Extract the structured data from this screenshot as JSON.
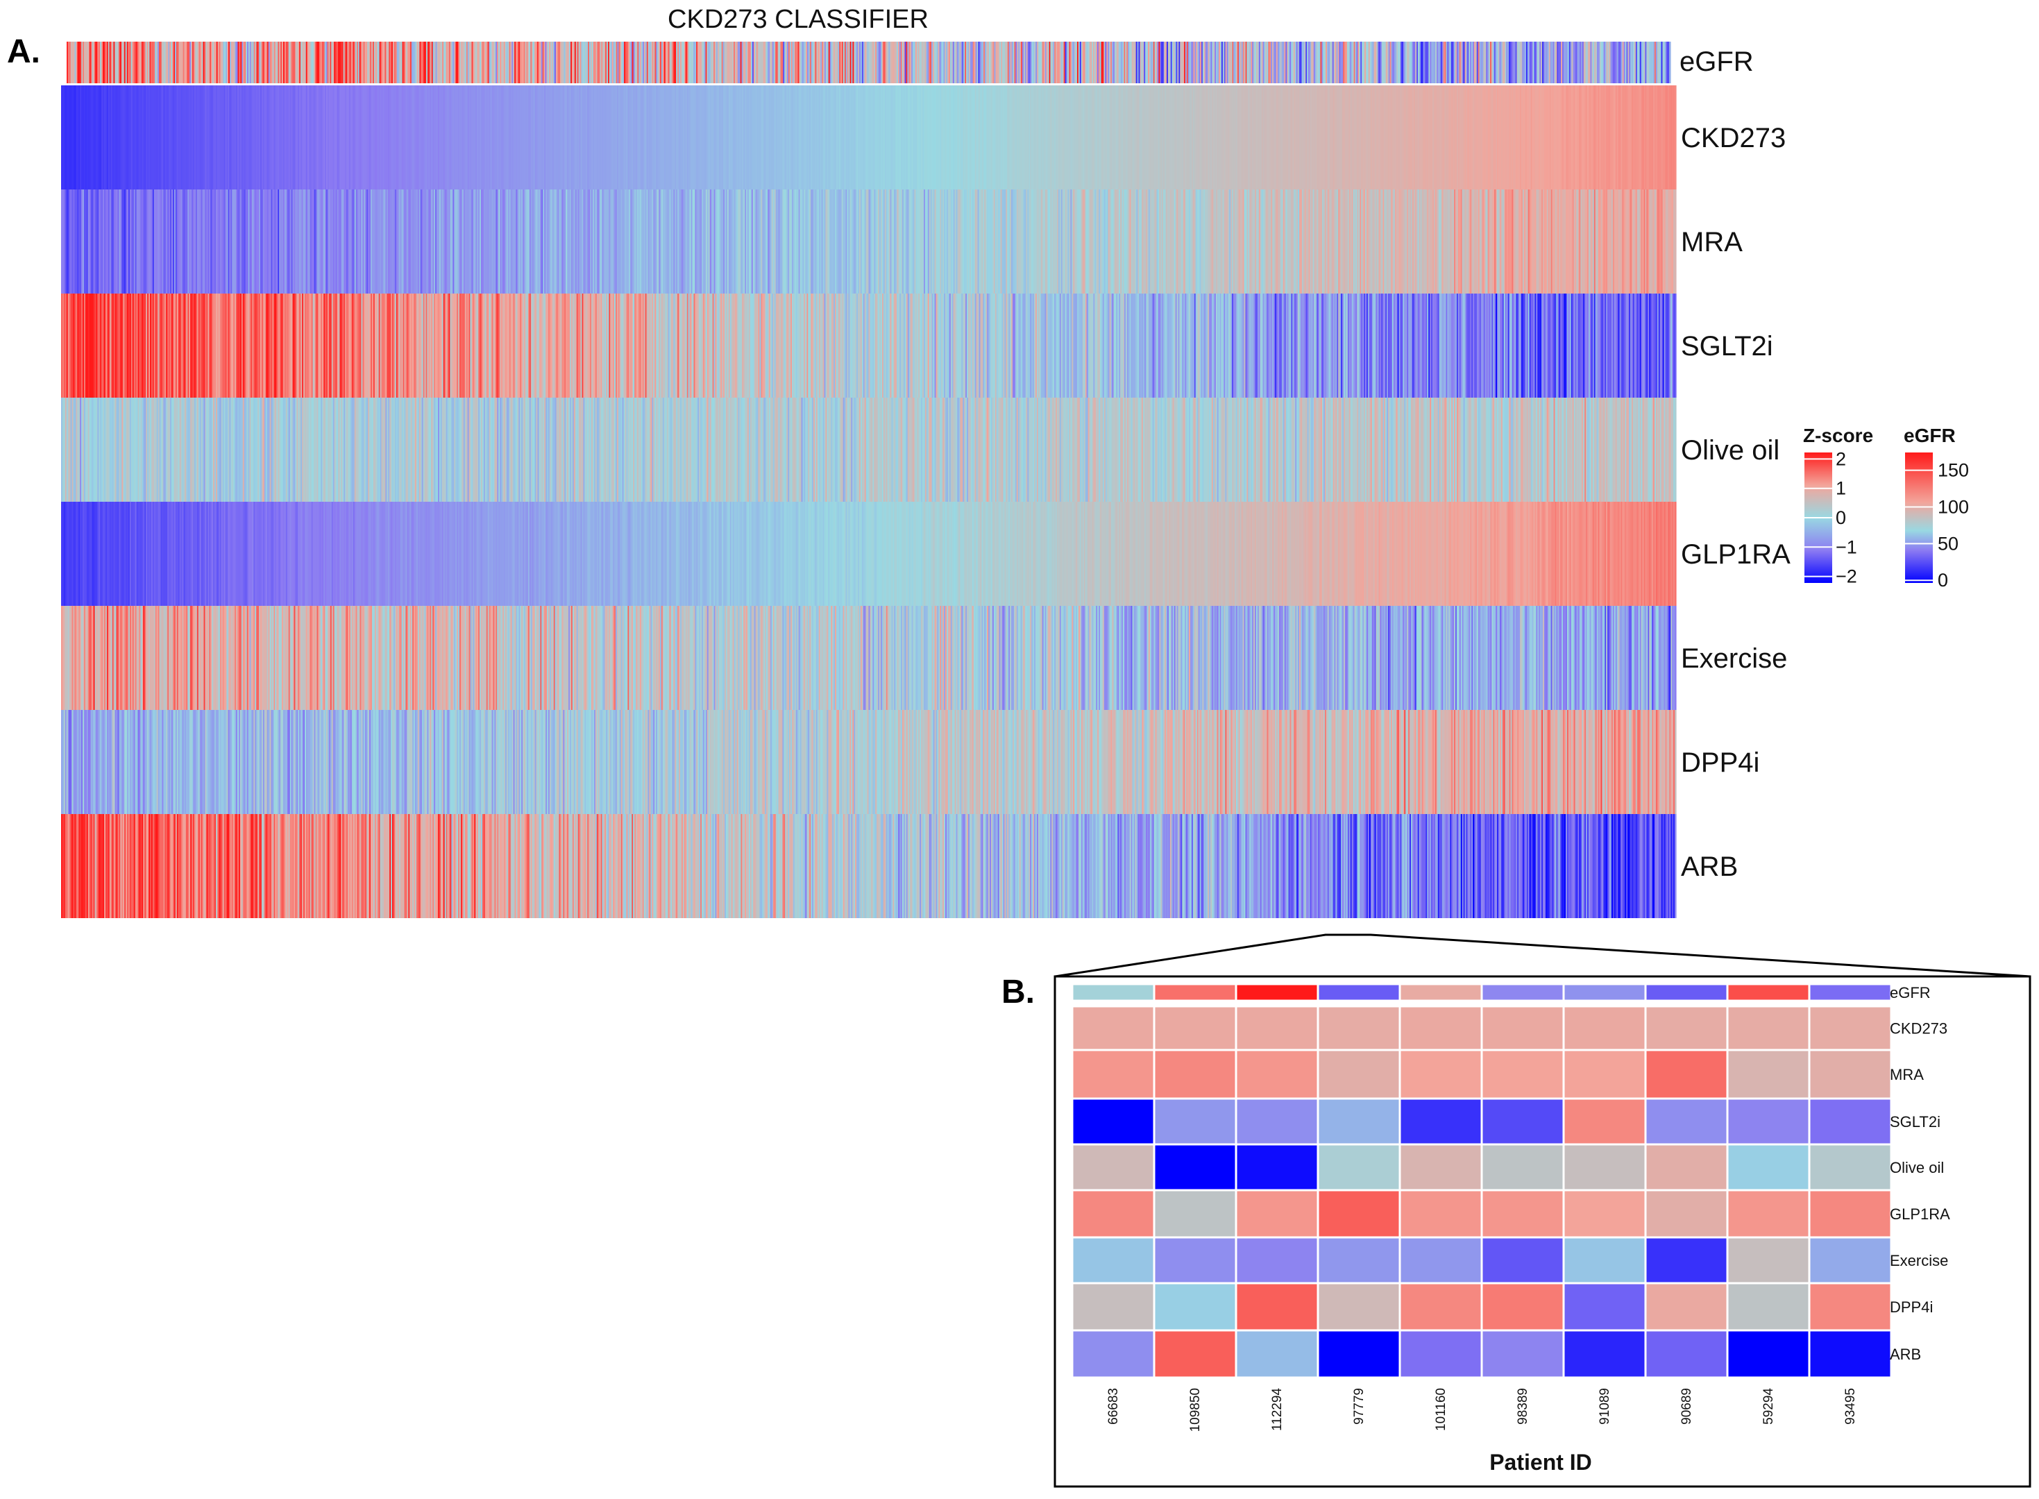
{
  "figure": {
    "panel_a_label": "A.",
    "panel_b_label": "B."
  },
  "chart_data": [
    {
      "type": "heatmap",
      "panel": "A",
      "title": "CKD273 CLASSIFIER",
      "annotation_track": "eGFR",
      "rows": [
        "CKD273",
        "MRA",
        "SGLT2i",
        "Olive oil",
        "GLP1RA",
        "Exercise",
        "DPP4i",
        "ARB"
      ],
      "n_columns_approx": 1200,
      "column_order": "sorted by CKD273 z-score, ascending",
      "row_profiles_zscore_start_to_end": {
        "CKD273": [
          -1.6,
          1.2
        ],
        "MRA": [
          -1.2,
          1.0
        ],
        "SGLT2i": [
          1.8,
          -1.3
        ],
        "Olive oil": [
          0.0,
          0.4
        ],
        "GLP1RA": [
          -1.5,
          1.3
        ],
        "Exercise": [
          1.0,
          -0.7
        ],
        "DPP4i": [
          -0.5,
          1.0
        ],
        "ARB": [
          1.7,
          -1.5
        ]
      }
    },
    {
      "type": "heatmap",
      "panel": "B",
      "xlabel": "Patient ID",
      "annotation_track": "eGFR",
      "patients": [
        "66683",
        "109850",
        "112294",
        "97779",
        "101160",
        "98389",
        "91089",
        "90689",
        "59294",
        "93495"
      ],
      "egfr": [
        70,
        120,
        145,
        15,
        100,
        30,
        35,
        15,
        130,
        20
      ],
      "rows": [
        "CKD273",
        "MRA",
        "SGLT2i",
        "Olive oil",
        "GLP1RA",
        "Exercise",
        "DPP4i",
        "ARB"
      ],
      "zscores": [
        [
          0.9,
          0.9,
          0.9,
          0.85,
          0.9,
          0.9,
          0.9,
          0.85,
          0.85,
          0.85
        ],
        [
          1.1,
          1.2,
          1.1,
          0.8,
          1.0,
          1.0,
          1.0,
          1.4,
          0.7,
          0.8
        ],
        [
          -2.0,
          -0.7,
          -0.8,
          -0.4,
          -1.6,
          -1.4,
          1.2,
          -0.8,
          -0.9,
          -1.1
        ],
        [
          0.6,
          -2.0,
          -1.9,
          0.2,
          0.7,
          0.4,
          0.5,
          0.8,
          -0.1,
          0.3
        ],
        [
          1.2,
          0.4,
          1.1,
          1.5,
          1.1,
          1.1,
          1.0,
          0.8,
          1.1,
          1.2
        ],
        [
          -0.2,
          -0.8,
          -0.9,
          -0.7,
          -0.7,
          -1.3,
          -0.2,
          -1.6,
          0.5,
          -0.5
        ],
        [
          0.5,
          -0.1,
          1.5,
          0.6,
          1.2,
          1.3,
          -1.2,
          0.9,
          0.4,
          1.2
        ],
        [
          -0.8,
          1.5,
          -0.3,
          -2.0,
          -1.1,
          -0.9,
          -1.7,
          -1.2,
          -2.0,
          -1.9
        ]
      ]
    }
  ],
  "legends": {
    "zscore": {
      "title": "Z-score",
      "ticks": [
        "2",
        "1",
        "0",
        "−1",
        "−2"
      ],
      "tick_values": [
        2,
        1,
        0,
        -1,
        -2
      ],
      "range": [
        -2,
        2
      ]
    },
    "egfr": {
      "title": "eGFR",
      "ticks": [
        "150",
        "100",
        "50",
        "0"
      ],
      "tick_values": [
        150,
        100,
        50,
        0
      ],
      "range": [
        0,
        160
      ]
    }
  },
  "colors": {
    "low": "#0000FF",
    "mid_low": "#8C7BF2",
    "mid": "#99D8E2",
    "mid_high": "#F3A49A",
    "high": "#FF1A1A"
  }
}
